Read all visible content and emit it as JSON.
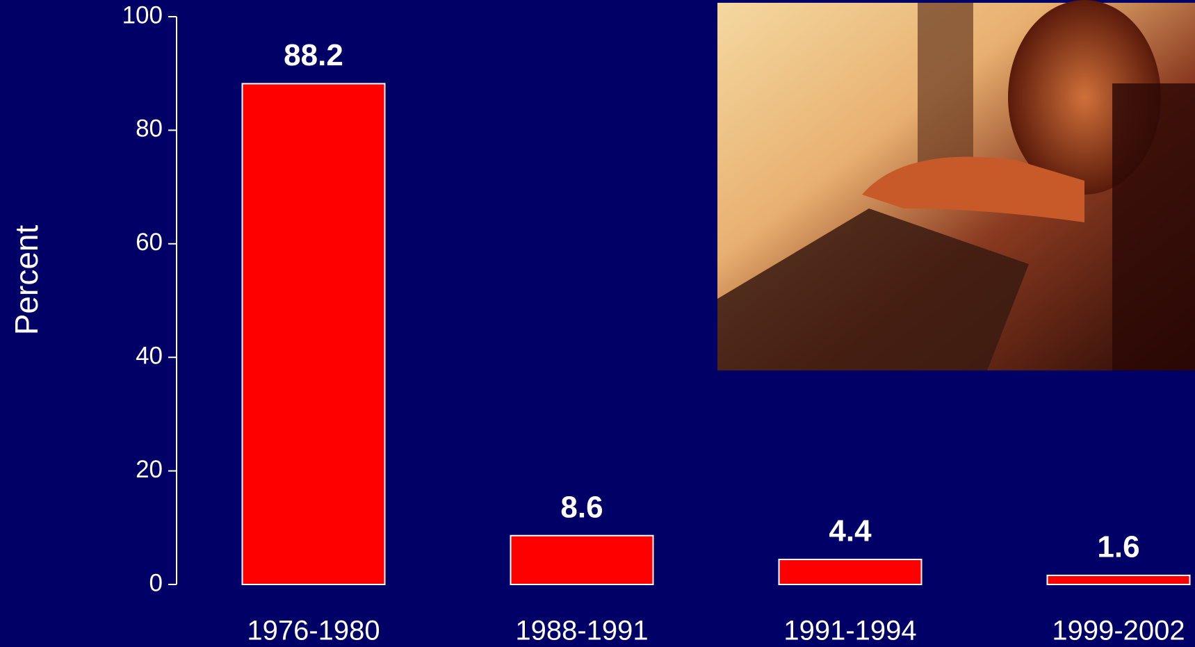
{
  "chart_data": {
    "type": "bar",
    "y_label": "Percent",
    "categories": [
      "1976-1980",
      "1988-1991",
      "1991-1994",
      "1999-2002"
    ],
    "values": [
      88.2,
      8.6,
      4.4,
      1.6
    ],
    "color": "#ff0000",
    "ylim": [
      0,
      100
    ],
    "yticks": [
      0,
      20,
      40,
      60,
      80,
      100
    ],
    "grid": false
  }
}
